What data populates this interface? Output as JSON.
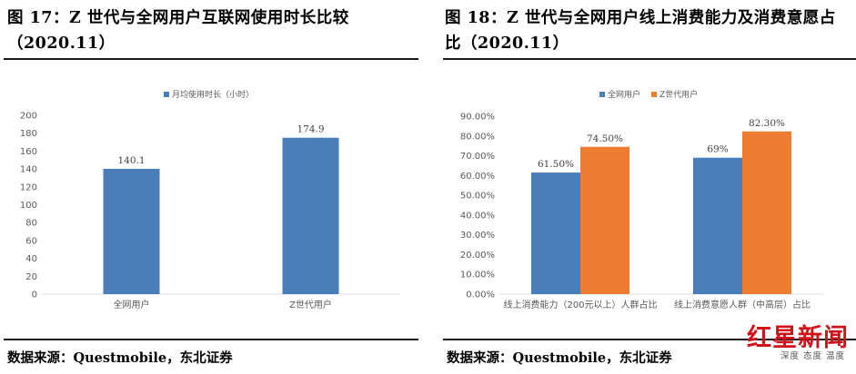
{
  "left_panel": {
    "title": "图 17：Z 世代与全网用户互联网使用时长比较（2020.11）",
    "source": "数据来源：Questmobile，东北证券"
  },
  "right_panel": {
    "title": "图 18：Z 世代与全网用户线上消费能力及消费意愿占比（2020.11）",
    "source": "数据来源：Questmobile，东北证券"
  },
  "watermark": {
    "main": "红星新闻",
    "sub": "深度 态度 温度"
  },
  "chart_data": [
    {
      "type": "bar",
      "title": "",
      "legend": [
        "月均使用时长（小时）"
      ],
      "legend_position": "top",
      "categories": [
        "全网用户",
        "Z世代用户"
      ],
      "series": [
        {
          "name": "月均使用时长（小时）",
          "values": [
            140.1,
            174.9
          ],
          "labels": [
            "140.1",
            "174.9"
          ],
          "color": "#4a7ebb"
        }
      ],
      "yticks": [
        "0",
        "20",
        "40",
        "60",
        "80",
        "100",
        "120",
        "140",
        "160",
        "180",
        "200"
      ],
      "ylim": [
        0,
        200
      ],
      "grid": false
    },
    {
      "type": "bar",
      "title": "",
      "legend_position": "top",
      "categories": [
        "线上消费能力（200元以上）人群占比",
        "线上消费意愿人群（中高层）占比"
      ],
      "series": [
        {
          "name": "全网用户",
          "values": [
            61.5,
            69
          ],
          "labels": [
            "61.50%",
            "69%"
          ],
          "color": "#4a7ebb"
        },
        {
          "name": "Z世代用户",
          "values": [
            74.5,
            82.3
          ],
          "labels": [
            "74.50%",
            "82.30%"
          ],
          "color": "#ed7d31"
        }
      ],
      "yticks": [
        "0.00%",
        "10.00%",
        "20.00%",
        "30.00%",
        "40.00%",
        "50.00%",
        "60.00%",
        "70.00%",
        "80.00%",
        "90.00%"
      ],
      "ylim": [
        0,
        90
      ],
      "grid": false
    }
  ]
}
